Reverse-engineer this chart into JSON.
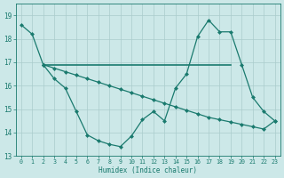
{
  "xlabel": "Humidex (Indice chaleur)",
  "bg_color": "#cce8e8",
  "line_color": "#1a7a6e",
  "grid_color": "#aacccc",
  "xlim": [
    -0.5,
    23.5
  ],
  "ylim": [
    13,
    19.5
  ],
  "yticks": [
    13,
    14,
    15,
    16,
    17,
    18,
    19
  ],
  "xticks": [
    0,
    1,
    2,
    3,
    4,
    5,
    6,
    7,
    8,
    9,
    10,
    11,
    12,
    13,
    14,
    15,
    16,
    17,
    18,
    19,
    20,
    21,
    22,
    23
  ],
  "line1": {
    "x": [
      0,
      1,
      2
    ],
    "y": [
      18.6,
      18.2,
      16.9
    ]
  },
  "line_flat": {
    "x": [
      2,
      19
    ],
    "y": [
      16.9,
      16.9
    ]
  },
  "line_diagonal": {
    "x": [
      2,
      3,
      4,
      5,
      6,
      7,
      8,
      9,
      10,
      11,
      12,
      13,
      14,
      15,
      16,
      17,
      18,
      19,
      20,
      21,
      22,
      23
    ],
    "y": [
      16.9,
      16.75,
      16.6,
      16.45,
      16.3,
      16.15,
      16.0,
      15.85,
      15.7,
      15.55,
      15.4,
      15.25,
      15.1,
      14.95,
      14.8,
      14.65,
      14.55,
      14.45,
      14.35,
      14.25,
      14.15,
      14.5
    ]
  },
  "line_wave": {
    "x": [
      2,
      3,
      4,
      5,
      6,
      7,
      8,
      9,
      10,
      11,
      12,
      13,
      14,
      15,
      16,
      17,
      18,
      19,
      20,
      21,
      22,
      23
    ],
    "y": [
      16.9,
      16.3,
      15.9,
      14.9,
      13.9,
      13.65,
      13.5,
      13.4,
      13.85,
      14.55,
      14.9,
      14.5,
      15.9,
      16.5,
      18.1,
      18.8,
      18.3,
      18.3,
      16.9,
      15.5,
      14.9,
      14.5
    ]
  }
}
